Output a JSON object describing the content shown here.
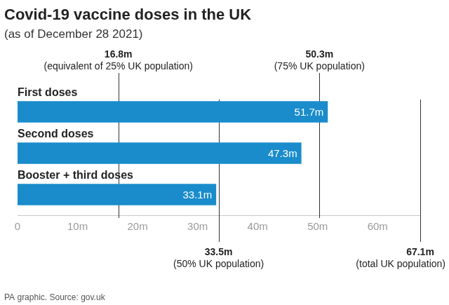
{
  "chart_data": {
    "type": "bar",
    "orientation": "horizontal",
    "title": "Covid-19 vaccine doses in the UK",
    "subtitle": "(as of December 28 2021)",
    "categories": [
      "First doses",
      "Second doses",
      "Booster + third doses"
    ],
    "values": [
      51.7,
      47.3,
      33.1
    ],
    "value_labels": [
      "51.7m",
      "47.3m",
      "33.1m"
    ],
    "data_labels": true,
    "color": "#1a8ccb",
    "xlim": [
      0,
      67.1
    ],
    "xticks": [
      0,
      {
        "value": 10,
        "label": "10m"
      },
      {
        "value": 20,
        "label": "20m"
      },
      {
        "value": 30,
        "label": "30m"
      },
      {
        "value": 40,
        "label": "40m"
      },
      {
        "value": 50,
        "label": "50m"
      },
      {
        "value": 60,
        "label": "60m"
      }
    ],
    "grid": false,
    "legend": false,
    "reference_lines": [
      {
        "value": 16.8,
        "label": "16.8m",
        "note": "(equivalent of 25% UK population)"
      },
      {
        "value": 33.5,
        "label": "33.5m",
        "note": "(50% UK population)"
      },
      {
        "value": 50.3,
        "label": "50.3m",
        "note": "(75% UK population)"
      },
      {
        "value": 67.1,
        "label": "67.1m",
        "note": "(total UK population)"
      }
    ],
    "source": "PA graphic. Source: gov.uk"
  }
}
